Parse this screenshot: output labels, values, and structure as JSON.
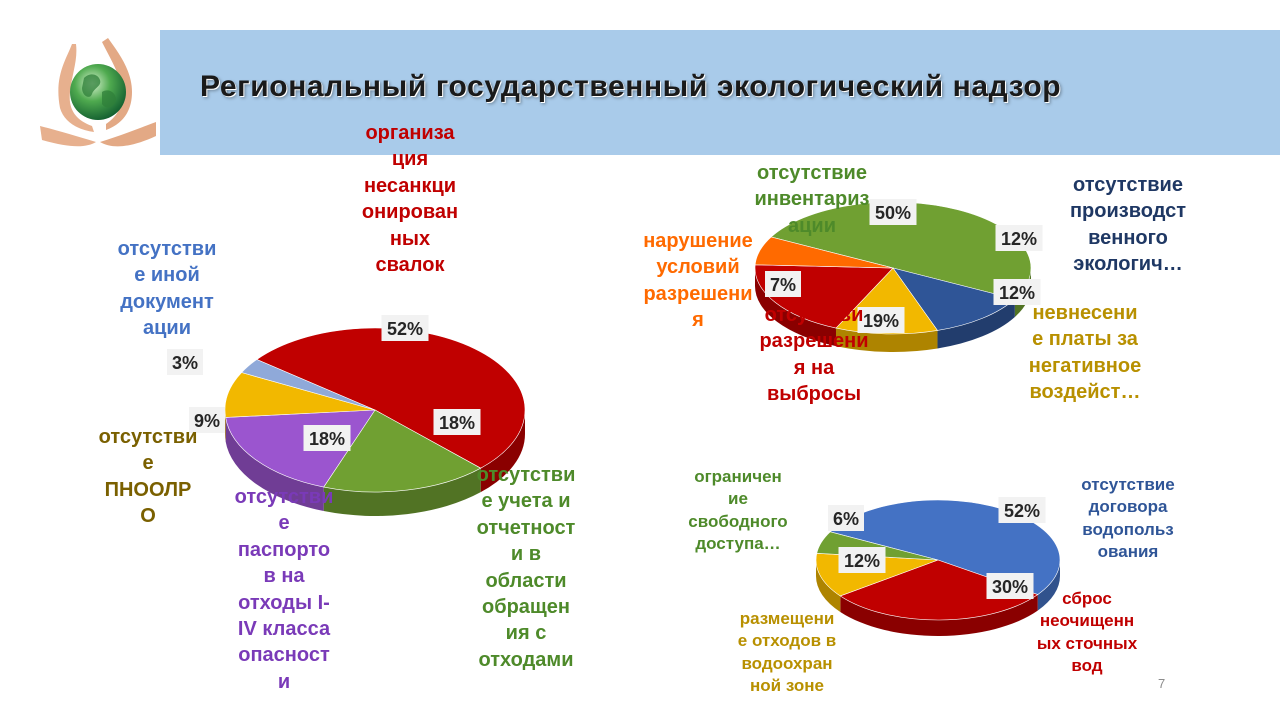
{
  "title": "Региональный государственный экологический надзор",
  "page_number": "7",
  "chart_data": [
    {
      "type": "pie",
      "values": [
        52,
        18,
        18,
        9,
        3
      ],
      "labels": [
        "организа\nция\nнесанкци\nонирован\nных\nсвалок",
        "отсутстви\nе учета и\nотчетност\nи в\nобласти\nобращен\nия с\nотходами",
        "отсутстви\nе\nпаспорто\nв на\nотходы I-\nIV класса\nопасност\nи",
        "отсутстви\nе\nПНООЛР\nО",
        "отсутстви\nе иной\nдокумент\nации"
      ],
      "data_labels": [
        "52%",
        "18%",
        "18%",
        "9%",
        "3%"
      ],
      "colors": [
        "#c00000",
        "#70a032",
        "#9b55cf",
        "#f2b800",
        "#8fa9d9"
      ],
      "label_colors": [
        "#c00000",
        "#4e8a2a",
        "#7a3ab8",
        "#7a6000",
        "#4472c4"
      ]
    },
    {
      "type": "pie",
      "values": [
        50,
        12,
        12,
        19,
        7
      ],
      "labels": [
        "отсутствие\nинвентариз\nации",
        "отсутствие\nпроизводст\nвенного\nэкологич…",
        "невнесени\nе платы за\nнегативное\nвоздейст…",
        "отсутстви\nразрешени\nя на\nвыбросы",
        "нарушение\nусловий\nразрешени\nя"
      ],
      "data_labels": [
        "50%",
        "12%",
        "12%",
        "19%",
        "7%"
      ],
      "colors": [
        "#70a032",
        "#2f5597",
        "#f2b800",
        "#c00000",
        "#ff6a00"
      ],
      "label_colors": [
        "#4e8a2a",
        "#1f3864",
        "#b89000",
        "#c00000",
        "#ff6a00"
      ]
    },
    {
      "type": "pie",
      "values": [
        52,
        30,
        12,
        6
      ],
      "labels": [
        "отсутствие\nдоговора\nводопольз\nования",
        "сброс\nнеочищенн\nых сточных\nвод",
        "размещени\nе отходов в\nводоохран\nной зоне",
        "ограничен\nие\nсвободного\nдоступа…"
      ],
      "data_labels": [
        "52%",
        "30%",
        "12%",
        "6%"
      ],
      "colors": [
        "#4472c4",
        "#c00000",
        "#f2b800",
        "#70a032"
      ],
      "label_colors": [
        "#2f5597",
        "#c00000",
        "#b89000",
        "#4e8a2a"
      ]
    }
  ]
}
